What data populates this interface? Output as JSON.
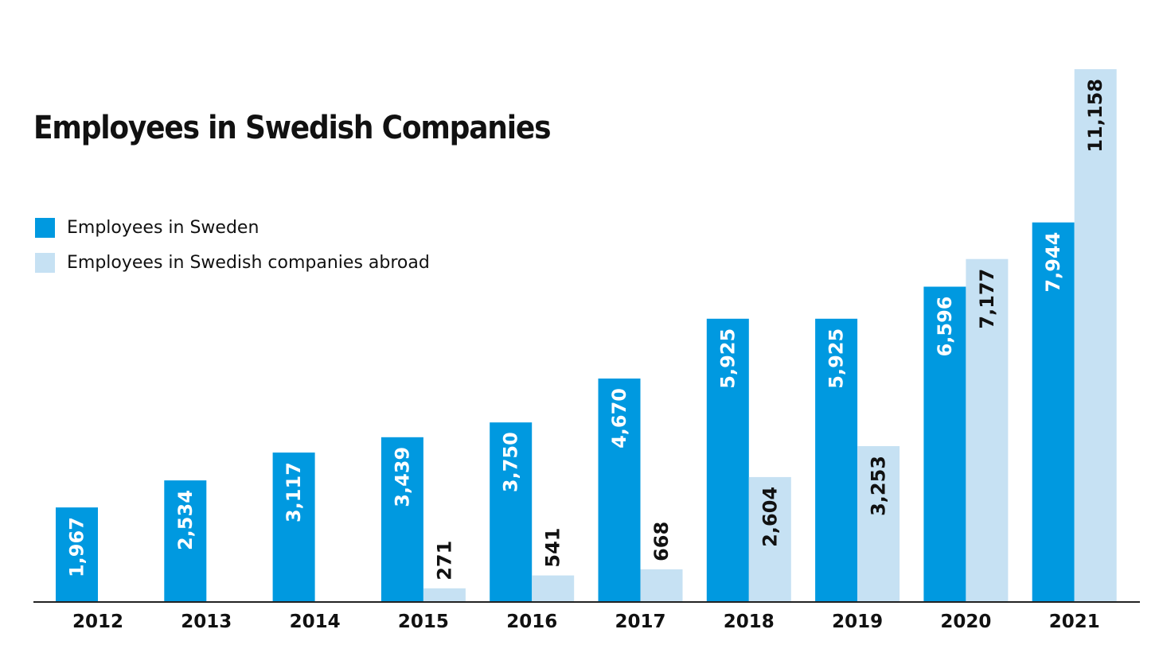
{
  "chart_data": {
    "type": "bar",
    "title": "Employees in Swedish Companies",
    "xlabel": "",
    "ylabel": "",
    "ylim": [
      0,
      11400
    ],
    "grid": false,
    "legend_position": "top-left",
    "categories": [
      "2012",
      "2013",
      "2014",
      "2015",
      "2016",
      "2017",
      "2018",
      "2019",
      "2020",
      "2021"
    ],
    "series": [
      {
        "name": "Employees in Sweden",
        "color": "#0099e0",
        "values": [
          1967,
          2534,
          3117,
          3439,
          3750,
          4670,
          5925,
          5925,
          6596,
          7944
        ],
        "labels": [
          "1,967",
          "2,534",
          "3,117",
          "3,439",
          "3,750",
          "4,670",
          "5,925",
          "5,925",
          "6,596",
          "7,944"
        ]
      },
      {
        "name": "Employees in Swedish companies abroad",
        "color": "#c6e1f3",
        "values": [
          null,
          null,
          null,
          271,
          541,
          668,
          2604,
          3253,
          7177,
          11158
        ],
        "labels": [
          "",
          "",
          "",
          "271",
          "541",
          "668",
          "2,604",
          "3,253",
          "7,177",
          "11,158"
        ]
      }
    ]
  }
}
